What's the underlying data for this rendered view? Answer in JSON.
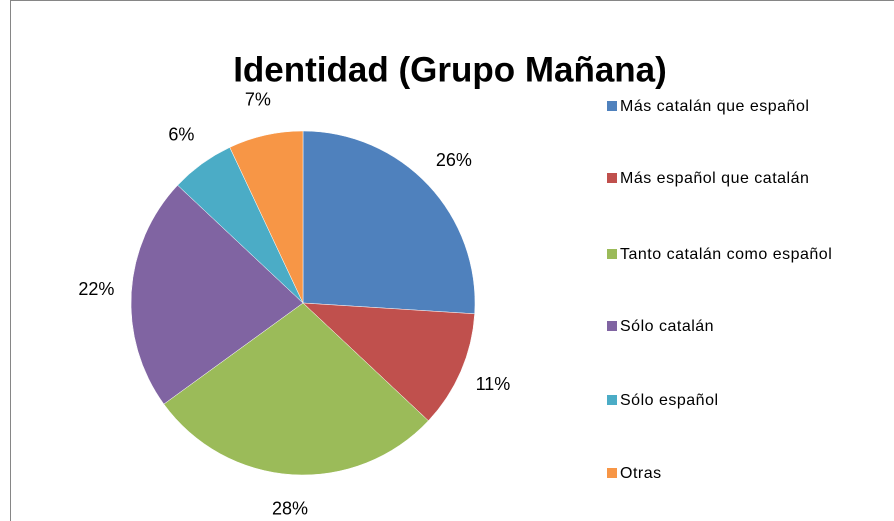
{
  "chart_data": {
    "type": "pie",
    "title": "Identidad (Grupo Mañana)",
    "categories": [
      "Más catalán que español",
      "Más español que catalán",
      "Tanto catalán como español",
      "Sólo catalán",
      "Sólo español",
      "Otras"
    ],
    "values": [
      26,
      11,
      28,
      22,
      6,
      7
    ],
    "value_labels": [
      "26%",
      "11%",
      "28%",
      "22%",
      "6%",
      "7%"
    ],
    "colors": [
      "#4f81bd",
      "#c0504d",
      "#9bbb59",
      "#8064a2",
      "#4bacc6",
      "#f79646"
    ],
    "legend": "right"
  }
}
